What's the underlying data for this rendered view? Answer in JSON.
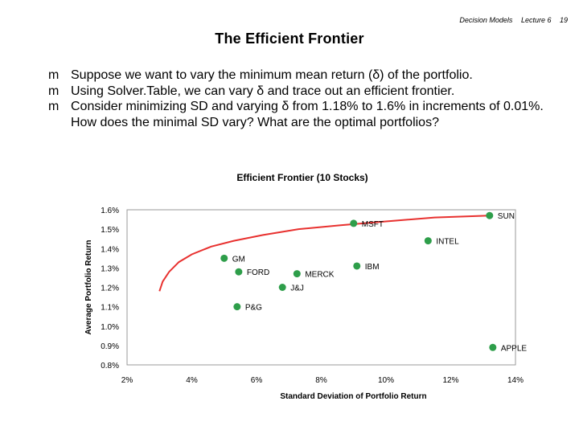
{
  "header": {
    "course": "Decision Models",
    "lecture": "Lecture 6",
    "page": "19"
  },
  "slide": {
    "title": "The Efficient Frontier",
    "bullets": [
      "Suppose we want to vary the minimum mean return (δ) of the portfolio.",
      "Using Solver.Table, we can vary δ and trace out an efficient frontier.",
      "Consider minimizing SD and varying δ from 1.18% to 1.6% in increments of 0.01%.  How does the minimal SD vary? What are the optimal portfolios?"
    ],
    "bullet_marker": "m"
  },
  "colors": {
    "marker": "#2e9e4a",
    "frontier": "#e8312f",
    "plot_border": "#999999"
  },
  "chart_data": {
    "type": "scatter",
    "title": "Efficient Frontier (10 Stocks)",
    "xlabel": "Standard Deviation of Portfolio Return",
    "ylabel": "Average Portfolio Return",
    "xlim": [
      2,
      14
    ],
    "ylim": [
      0.8,
      1.6
    ],
    "x_ticks": [
      "2%",
      "4%",
      "6%",
      "8%",
      "10%",
      "12%",
      "14%"
    ],
    "y_ticks": [
      "1.6%",
      "1.5%",
      "1.4%",
      "1.3%",
      "1.2%",
      "1.1%",
      "1.0%",
      "0.9%",
      "0.8%"
    ],
    "grid": false,
    "points": [
      {
        "label": "SUN",
        "x": 13.2,
        "y": 1.57
      },
      {
        "label": "MSFT",
        "x": 9.0,
        "y": 1.53
      },
      {
        "label": "INTEL",
        "x": 11.3,
        "y": 1.44
      },
      {
        "label": "GM",
        "x": 5.0,
        "y": 1.35
      },
      {
        "label": "IBM",
        "x": 9.1,
        "y": 1.31
      },
      {
        "label": "FORD",
        "x": 5.45,
        "y": 1.28
      },
      {
        "label": "MERCK",
        "x": 7.25,
        "y": 1.27
      },
      {
        "label": "J&J",
        "x": 6.8,
        "y": 1.2
      },
      {
        "label": "P&G",
        "x": 5.4,
        "y": 1.1
      },
      {
        "label": "APPLE",
        "x": 13.3,
        "y": 0.89
      }
    ],
    "frontier": {
      "x": [
        3.0,
        3.1,
        3.3,
        3.6,
        4.0,
        4.6,
        5.3,
        6.2,
        7.3,
        8.6,
        10.0,
        11.5,
        13.2
      ],
      "y": [
        1.18,
        1.23,
        1.28,
        1.33,
        1.37,
        1.41,
        1.44,
        1.47,
        1.5,
        1.52,
        1.54,
        1.56,
        1.57
      ]
    }
  }
}
